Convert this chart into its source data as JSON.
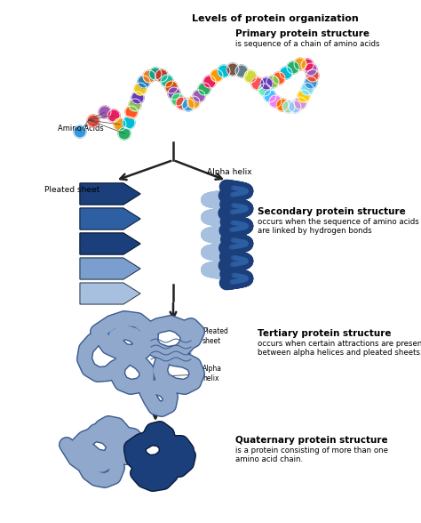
{
  "title": "Levels of protein organization",
  "bg_color": "#ffffff",
  "text_color": "#000000",
  "sections": [
    {
      "level": "Primary protein structure",
      "desc": "is sequence of a chain of amino acids"
    },
    {
      "level": "Secondary protein structure",
      "desc": "occurs when the sequence of amino acids\nare linked by hydrogen bonds"
    },
    {
      "level": "Tertiary protein structure",
      "desc": "occurs when certain attractions are present\nbetween alpha helices and pleated sheets."
    },
    {
      "level": "Quaternary protein structure",
      "desc": "is a protein consisting of more than one\namino acid chain."
    }
  ],
  "bead_colors": [
    "#3498db",
    "#e74c3c",
    "#9b59b6",
    "#e91e63",
    "#f39c12",
    "#27ae60",
    "#00bcd4",
    "#ff5722",
    "#8bc34a",
    "#673ab7",
    "#f1c40f",
    "#2980b9",
    "#e67e22",
    "#16a085",
    "#c0392b",
    "#1abc9c",
    "#d35400",
    "#8e44ad",
    "#2ecc71",
    "#e74c3c",
    "#3498db",
    "#f39c12",
    "#9b59b6",
    "#27ae60",
    "#e91e63",
    "#ff9800",
    "#00bcd4",
    "#795548",
    "#607d8b",
    "#cddc39",
    "#ff5252",
    "#69f0ae",
    "#40c4ff",
    "#ea80fc",
    "#ff6d00",
    "#a5d6a7",
    "#90caf9",
    "#ce93d8",
    "#ffcc02",
    "#80deea"
  ],
  "arrow_color": "#222222",
  "pleated_dark": "#1b3f7a",
  "pleated_mid": "#2e5fa3",
  "pleated_light": "#7a9fce",
  "pleated_lighter": "#a8c0e0",
  "helix_dark": "#1b3f7a",
  "helix_mid": "#2e5fa3",
  "helix_light": "#a8c0e0",
  "tertiary_fill": "#8fa8cc",
  "tertiary_stroke": "#3a5a8f",
  "tertiary_inner": "#7090b8",
  "quat_light_fill": "#8fa8cc",
  "quat_light_stroke": "#3a5a8f",
  "quat_dark_fill": "#1b3f7a",
  "quat_dark_stroke": "#0a1a3b"
}
